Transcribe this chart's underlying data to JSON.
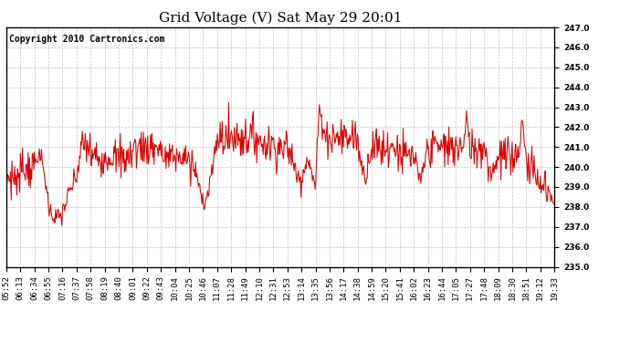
{
  "title": "Grid Voltage (V) Sat May 29 20:01",
  "copyright": "Copyright 2010 Cartronics.com",
  "line_color": "#dd0000",
  "background_color": "#ffffff",
  "plot_bg_color": "#ffffff",
  "grid_color": "#bbbbbb",
  "ylim": [
    235.0,
    247.0
  ],
  "ytick_interval": 1.0,
  "xtick_labels": [
    "05:52",
    "06:13",
    "06:34",
    "06:55",
    "07:16",
    "07:37",
    "07:58",
    "08:19",
    "08:40",
    "09:01",
    "09:22",
    "09:43",
    "10:04",
    "10:25",
    "10:46",
    "11:07",
    "11:28",
    "11:49",
    "12:10",
    "12:31",
    "12:53",
    "13:14",
    "13:35",
    "13:56",
    "14:17",
    "14:38",
    "14:59",
    "15:20",
    "15:41",
    "16:02",
    "16:23",
    "16:44",
    "17:05",
    "17:27",
    "17:48",
    "18:09",
    "18:30",
    "18:51",
    "19:12",
    "19:33"
  ],
  "title_fontsize": 11,
  "copyright_fontsize": 7,
  "tick_fontsize": 6.5,
  "line_width": 0.75
}
